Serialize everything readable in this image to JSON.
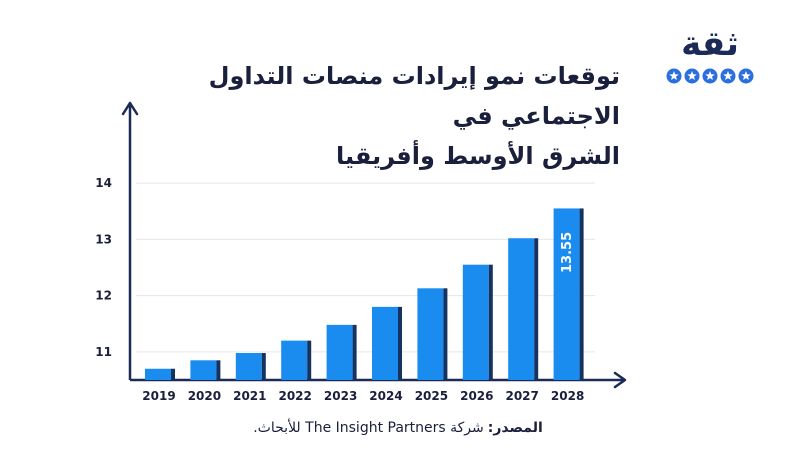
{
  "title": {
    "line1": "توقعات نمو إيرادات منصات التداول الاجتماعي في",
    "line2": "الشرق الأوسط وأفريقيا"
  },
  "logo": {
    "text": "ثقة",
    "stars": 5,
    "color": "#1c2a58",
    "star_color": "#2a6fdb"
  },
  "source": {
    "label": "المصدر:",
    "text": "شركة The Insight Partners للأبحاث."
  },
  "chart_data": {
    "type": "bar",
    "title": "توقعات نمو إيرادات منصات التداول الاجتماعي في الشرق الأوسط وأفريقيا",
    "xlabel": "",
    "ylabel": "",
    "categories": [
      "2019",
      "2020",
      "2021",
      "2022",
      "2023",
      "2024",
      "2025",
      "2026",
      "2027",
      "2028"
    ],
    "values": [
      10.7,
      10.85,
      10.98,
      11.2,
      11.48,
      11.8,
      12.13,
      12.55,
      13.02,
      13.55
    ],
    "ylim": [
      10.5,
      15.3
    ],
    "yticks": [
      11,
      12,
      13,
      14
    ],
    "data_labels": [
      {
        "category": "2028",
        "text": "13.55"
      }
    ],
    "grid": true,
    "legend": "none",
    "colors": {
      "bar": "#1a8cf0",
      "bar_shadow": "#16325f",
      "axis": "#1c2a58",
      "grid": "#e4e6ea",
      "text": "#1a1f3c",
      "label": "#ffffff"
    }
  }
}
